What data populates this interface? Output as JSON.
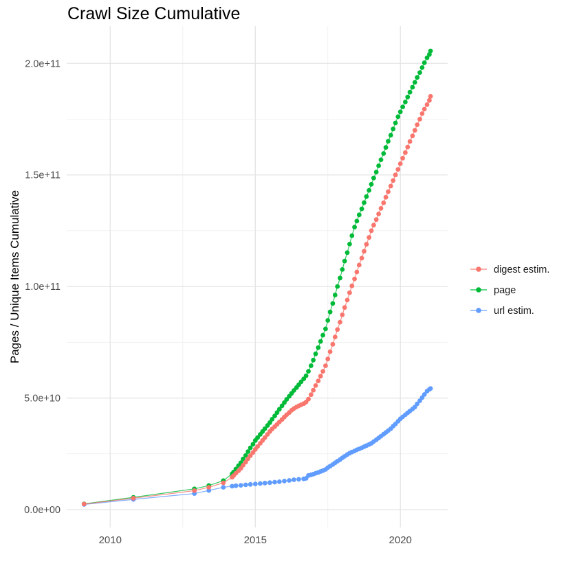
{
  "title": "Crawl Size Cumulative",
  "y_axis_title": "Pages / Unique Items Cumulative",
  "colors": {
    "background": "#FFFFFF",
    "grid_major": "#E4E4E4",
    "grid_minor": "#F1F1F1",
    "tick_text": "#4D4D4D",
    "title_text": "#000000",
    "legend_text": "#1A1A1A",
    "digest": "#F8766D",
    "page": "#00BA38",
    "url": "#619CFF"
  },
  "legend": {
    "items": [
      {
        "id": "digest",
        "label": "digest estim.",
        "color": "#F8766D"
      },
      {
        "id": "page",
        "label": "page",
        "color": "#00BA38"
      },
      {
        "id": "url",
        "label": "url estim.",
        "color": "#619CFF"
      }
    ]
  },
  "chart_data": {
    "type": "line",
    "title": "Crawl Size Cumulative",
    "xlabel": "",
    "ylabel": "Pages / Unique Items Cumulative",
    "grid": true,
    "legend_position": "right",
    "value_unit": 1000000000.0,
    "x_axis": {
      "domain": [
        2008.5,
        2021.63
      ],
      "major_ticks": [
        {
          "value": 2010,
          "label": "2010"
        },
        {
          "value": 2015,
          "label": "2015"
        },
        {
          "value": 2020,
          "label": "2020"
        }
      ],
      "minor_ticks": [
        2012.5,
        2017.5
      ]
    },
    "y_axis": {
      "domain_e9": [
        -8,
        216.7
      ],
      "major_ticks": [
        {
          "value_e9": 0,
          "label": "0.0e+00"
        },
        {
          "value_e9": 50,
          "label": "5.0e+10"
        },
        {
          "value_e9": 100,
          "label": "1.0e+11"
        },
        {
          "value_e9": 150,
          "label": "1.5e+11"
        },
        {
          "value_e9": 200,
          "label": "2.0e+11"
        }
      ],
      "minor_ticks_e9": [
        25,
        75,
        125,
        175
      ]
    },
    "series": [
      {
        "id": "page",
        "name": "page",
        "color": "#00BA38",
        "points": [
          [
            2009.1,
            2.6
          ],
          [
            2010.8,
            5.5
          ],
          [
            2012.9,
            9.3
          ],
          [
            2013.4,
            10.8
          ],
          [
            2013.9,
            13.0
          ],
          [
            2014.2,
            16.0
          ],
          [
            2014.25,
            16.8
          ],
          [
            2014.33,
            18.2
          ],
          [
            2014.42,
            19.7
          ],
          [
            2014.5,
            21.0
          ],
          [
            2014.58,
            22.7
          ],
          [
            2014.67,
            24.3
          ],
          [
            2014.75,
            26.0
          ],
          [
            2014.83,
            27.7
          ],
          [
            2014.92,
            29.3
          ],
          [
            2015.0,
            31.0
          ],
          [
            2015.08,
            32.3
          ],
          [
            2015.17,
            33.7
          ],
          [
            2015.25,
            35.0
          ],
          [
            2015.33,
            36.3
          ],
          [
            2015.42,
            37.7
          ],
          [
            2015.5,
            39.0
          ],
          [
            2015.58,
            40.5
          ],
          [
            2015.67,
            42.0
          ],
          [
            2015.75,
            43.5
          ],
          [
            2015.83,
            45.0
          ],
          [
            2015.92,
            46.5
          ],
          [
            2016.0,
            48.0
          ],
          [
            2016.08,
            49.4
          ],
          [
            2016.17,
            50.8
          ],
          [
            2016.25,
            52.1
          ],
          [
            2016.33,
            53.4
          ],
          [
            2016.42,
            54.7
          ],
          [
            2016.5,
            56.0
          ],
          [
            2016.58,
            57.3
          ],
          [
            2016.67,
            58.6
          ],
          [
            2016.75,
            60.0
          ],
          [
            2016.83,
            62.0
          ],
          [
            2016.92,
            64.5
          ],
          [
            2017.0,
            67.0
          ],
          [
            2017.08,
            69.8
          ],
          [
            2017.17,
            72.6
          ],
          [
            2017.25,
            75.4
          ],
          [
            2017.33,
            78.2
          ],
          [
            2017.42,
            81.0
          ],
          [
            2017.5,
            84.8
          ],
          [
            2017.58,
            88.6
          ],
          [
            2017.67,
            92.4
          ],
          [
            2017.75,
            96.2
          ],
          [
            2017.83,
            100.0
          ],
          [
            2017.92,
            103.8
          ],
          [
            2018.0,
            107.6
          ],
          [
            2018.08,
            111.4
          ],
          [
            2018.17,
            115.2
          ],
          [
            2018.25,
            119.0
          ],
          [
            2018.33,
            122.8
          ],
          [
            2018.42,
            126.6
          ],
          [
            2018.5,
            129.3
          ],
          [
            2018.58,
            132.1
          ],
          [
            2018.67,
            134.8
          ],
          [
            2018.75,
            137.6
          ],
          [
            2018.83,
            140.3
          ],
          [
            2018.92,
            143.1
          ],
          [
            2019.0,
            145.8
          ],
          [
            2019.08,
            148.6
          ],
          [
            2019.17,
            151.3
          ],
          [
            2019.25,
            154.1
          ],
          [
            2019.33,
            156.8
          ],
          [
            2019.42,
            159.6
          ],
          [
            2019.5,
            162.3
          ],
          [
            2019.58,
            165.1
          ],
          [
            2019.67,
            167.8
          ],
          [
            2019.75,
            170.6
          ],
          [
            2019.83,
            173.3
          ],
          [
            2019.92,
            176.1
          ],
          [
            2020.0,
            178.3
          ],
          [
            2020.08,
            180.5
          ],
          [
            2020.17,
            182.7
          ],
          [
            2020.25,
            184.9
          ],
          [
            2020.33,
            187.1
          ],
          [
            2020.42,
            189.3
          ],
          [
            2020.5,
            191.5
          ],
          [
            2020.58,
            193.7
          ],
          [
            2020.67,
            195.9
          ],
          [
            2020.75,
            198.1
          ],
          [
            2020.83,
            200.3
          ],
          [
            2020.92,
            202.5
          ],
          [
            2021.0,
            204.0
          ],
          [
            2021.04,
            205.6
          ]
        ]
      },
      {
        "id": "url",
        "name": "url estim.",
        "color": "#619CFF",
        "points": [
          [
            2009.1,
            2.3
          ],
          [
            2010.8,
            4.6
          ],
          [
            2012.9,
            7.2
          ],
          [
            2013.4,
            8.6
          ],
          [
            2013.9,
            10.0
          ],
          [
            2014.2,
            10.5
          ],
          [
            2014.33,
            10.7
          ],
          [
            2014.5,
            10.9
          ],
          [
            2014.67,
            11.1
          ],
          [
            2014.83,
            11.3
          ],
          [
            2015.0,
            11.5
          ],
          [
            2015.17,
            11.7
          ],
          [
            2015.33,
            11.9
          ],
          [
            2015.5,
            12.1
          ],
          [
            2015.67,
            12.3
          ],
          [
            2015.83,
            12.5
          ],
          [
            2016.0,
            12.8
          ],
          [
            2016.17,
            13.1
          ],
          [
            2016.33,
            13.4
          ],
          [
            2016.5,
            13.6
          ],
          [
            2016.67,
            13.8
          ],
          [
            2016.75,
            14.0
          ],
          [
            2016.83,
            15.3
          ],
          [
            2016.92,
            15.6
          ],
          [
            2017.0,
            15.9
          ],
          [
            2017.08,
            16.3
          ],
          [
            2017.17,
            16.7
          ],
          [
            2017.25,
            17.1
          ],
          [
            2017.33,
            17.5
          ],
          [
            2017.42,
            18.0
          ],
          [
            2017.5,
            18.8
          ],
          [
            2017.58,
            19.5
          ],
          [
            2017.67,
            20.2
          ],
          [
            2017.75,
            21.0
          ],
          [
            2017.83,
            21.7
          ],
          [
            2017.92,
            22.4
          ],
          [
            2018.0,
            23.2
          ],
          [
            2018.08,
            23.9
          ],
          [
            2018.17,
            24.7
          ],
          [
            2018.25,
            25.3
          ],
          [
            2018.33,
            25.8
          ],
          [
            2018.42,
            26.3
          ],
          [
            2018.5,
            26.8
          ],
          [
            2018.58,
            27.2
          ],
          [
            2018.67,
            27.7
          ],
          [
            2018.75,
            28.2
          ],
          [
            2018.83,
            28.7
          ],
          [
            2018.92,
            29.2
          ],
          [
            2019.0,
            29.7
          ],
          [
            2019.08,
            30.5
          ],
          [
            2019.17,
            31.3
          ],
          [
            2019.25,
            32.1
          ],
          [
            2019.33,
            32.9
          ],
          [
            2019.42,
            33.8
          ],
          [
            2019.5,
            34.6
          ],
          [
            2019.58,
            35.4
          ],
          [
            2019.67,
            36.3
          ],
          [
            2019.75,
            37.4
          ],
          [
            2019.83,
            38.4
          ],
          [
            2019.92,
            39.6
          ],
          [
            2020.0,
            40.7
          ],
          [
            2020.08,
            41.6
          ],
          [
            2020.17,
            42.5
          ],
          [
            2020.25,
            43.4
          ],
          [
            2020.33,
            44.2
          ],
          [
            2020.42,
            45.1
          ],
          [
            2020.5,
            46.0
          ],
          [
            2020.58,
            47.4
          ],
          [
            2020.67,
            48.8
          ],
          [
            2020.75,
            50.2
          ],
          [
            2020.83,
            51.6
          ],
          [
            2020.92,
            53.1
          ],
          [
            2021.0,
            53.9
          ],
          [
            2021.04,
            54.3
          ]
        ]
      },
      {
        "id": "digest",
        "name": "digest estim.",
        "color": "#F8766D",
        "points": [
          [
            2009.1,
            2.5
          ],
          [
            2010.8,
            5.1
          ],
          [
            2012.9,
            8.5
          ],
          [
            2013.4,
            10.0
          ],
          [
            2013.9,
            12.0
          ],
          [
            2014.2,
            14.5
          ],
          [
            2014.25,
            15.2
          ],
          [
            2014.33,
            16.3
          ],
          [
            2014.42,
            17.4
          ],
          [
            2014.5,
            18.5
          ],
          [
            2014.58,
            19.9
          ],
          [
            2014.67,
            21.3
          ],
          [
            2014.75,
            22.8
          ],
          [
            2014.83,
            24.2
          ],
          [
            2014.92,
            25.6
          ],
          [
            2015.0,
            27.0
          ],
          [
            2015.08,
            28.3
          ],
          [
            2015.17,
            29.7
          ],
          [
            2015.25,
            31.0
          ],
          [
            2015.33,
            32.3
          ],
          [
            2015.42,
            33.7
          ],
          [
            2015.5,
            35.0
          ],
          [
            2015.58,
            36.1
          ],
          [
            2015.67,
            37.2
          ],
          [
            2015.75,
            38.2
          ],
          [
            2015.83,
            39.3
          ],
          [
            2015.92,
            40.4
          ],
          [
            2016.0,
            41.5
          ],
          [
            2016.08,
            42.5
          ],
          [
            2016.17,
            43.5
          ],
          [
            2016.25,
            44.5
          ],
          [
            2016.33,
            45.3
          ],
          [
            2016.42,
            46.0
          ],
          [
            2016.5,
            46.5
          ],
          [
            2016.58,
            47.0
          ],
          [
            2016.67,
            47.5
          ],
          [
            2016.75,
            48.2
          ],
          [
            2016.83,
            49.5
          ],
          [
            2016.92,
            51.5
          ],
          [
            2017.0,
            53.5
          ],
          [
            2017.08,
            55.6
          ],
          [
            2017.17,
            57.7
          ],
          [
            2017.25,
            59.8
          ],
          [
            2017.33,
            62.0
          ],
          [
            2017.42,
            64.5
          ],
          [
            2017.5,
            67.5
          ],
          [
            2017.58,
            70.8
          ],
          [
            2017.67,
            74.1
          ],
          [
            2017.75,
            77.4
          ],
          [
            2017.83,
            80.7
          ],
          [
            2017.92,
            84.0
          ],
          [
            2018.0,
            87.3
          ],
          [
            2018.08,
            90.6
          ],
          [
            2018.17,
            93.9
          ],
          [
            2018.25,
            97.2
          ],
          [
            2018.33,
            100.3
          ],
          [
            2018.42,
            103.4
          ],
          [
            2018.5,
            106.5
          ],
          [
            2018.58,
            109.6
          ],
          [
            2018.67,
            112.7
          ],
          [
            2018.75,
            115.8
          ],
          [
            2018.83,
            118.9
          ],
          [
            2018.92,
            122.0
          ],
          [
            2019.0,
            125.0
          ],
          [
            2019.08,
            127.5
          ],
          [
            2019.17,
            130.0
          ],
          [
            2019.25,
            132.5
          ],
          [
            2019.33,
            135.0
          ],
          [
            2019.42,
            137.5
          ],
          [
            2019.5,
            140.0
          ],
          [
            2019.58,
            142.5
          ],
          [
            2019.67,
            145.0
          ],
          [
            2019.75,
            147.5
          ],
          [
            2019.83,
            150.0
          ],
          [
            2019.92,
            152.5
          ],
          [
            2020.0,
            155.0
          ],
          [
            2020.08,
            157.5
          ],
          [
            2020.17,
            160.0
          ],
          [
            2020.25,
            162.5
          ],
          [
            2020.33,
            165.0
          ],
          [
            2020.42,
            167.5
          ],
          [
            2020.5,
            170.0
          ],
          [
            2020.58,
            172.5
          ],
          [
            2020.67,
            175.0
          ],
          [
            2020.75,
            177.5
          ],
          [
            2020.83,
            179.5
          ],
          [
            2020.92,
            181.5
          ],
          [
            2021.0,
            183.4
          ],
          [
            2021.04,
            185.2
          ]
        ]
      }
    ]
  }
}
